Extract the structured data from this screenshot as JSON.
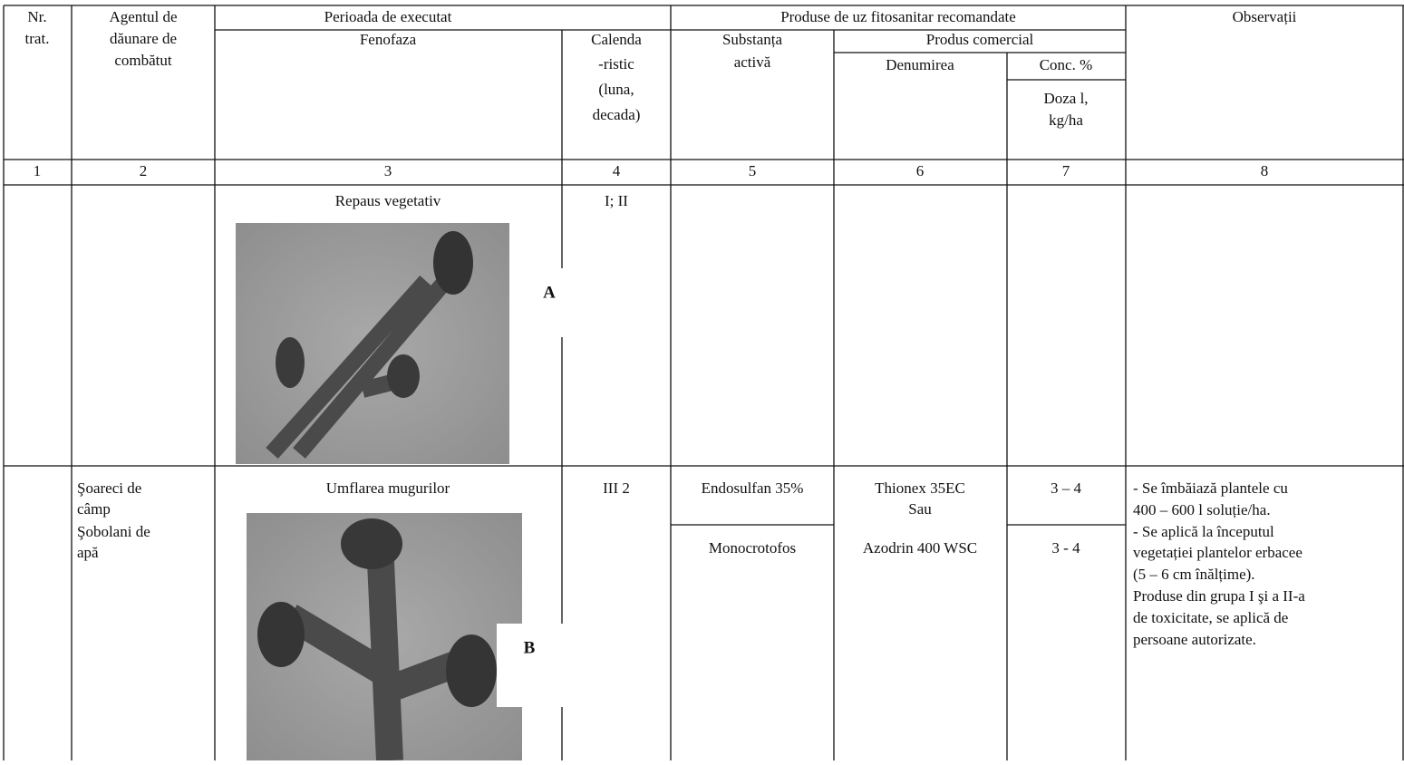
{
  "header": {
    "nr": [
      "Nr.",
      "trat."
    ],
    "agent": [
      "Agentul de",
      "dăunare de",
      "combătut"
    ],
    "period": "Perioada de executat",
    "phenophase": "Fenofaza",
    "calendar": [
      "Calenda",
      "-ristic",
      "(luna,",
      "decada)"
    ],
    "products": "Produse de uz fitosanitar recomandate",
    "active_substance": [
      "Substanța",
      "activă"
    ],
    "commercial": "Produs comercial",
    "name": "Denumirea",
    "conc": "Conc. %",
    "dose": [
      "Doza l,",
      "kg/ha"
    ],
    "notes": "Observații"
  },
  "column_numbers": [
    1,
    2,
    3,
    4,
    5,
    6,
    7,
    8
  ],
  "rows": [
    {
      "phenophase": "Repaus vegetativ",
      "image_label": "A",
      "calendar": "I; II"
    },
    {
      "agent": [
        "Şoareci   de",
        "câmp",
        "Şobolani de",
        "apă"
      ],
      "phenophase": "Umflarea mugurilor",
      "image_label": "B",
      "calendar": "III 2",
      "products": [
        {
          "active_substance": "Endosulfan 35%",
          "name": [
            "Thionex 35EC",
            "Sau"
          ],
          "dose": "3 – 4"
        },
        {
          "active_substance": "Monocrotofos",
          "name": [
            "Azodrin 400 WSC"
          ],
          "dose": "3 - 4"
        }
      ],
      "notes": [
        "- Se îmbăiază plantele cu",
        "400 – 600 l soluție/ha.",
        "- Se aplică la începutul",
        "vegetației plantelor erbacee",
        "(5 – 6 cm înălțime).",
        "Produse din grupa I şi a II-a",
        "de toxicitate, se aplică de",
        "persoane autorizate."
      ]
    }
  ]
}
